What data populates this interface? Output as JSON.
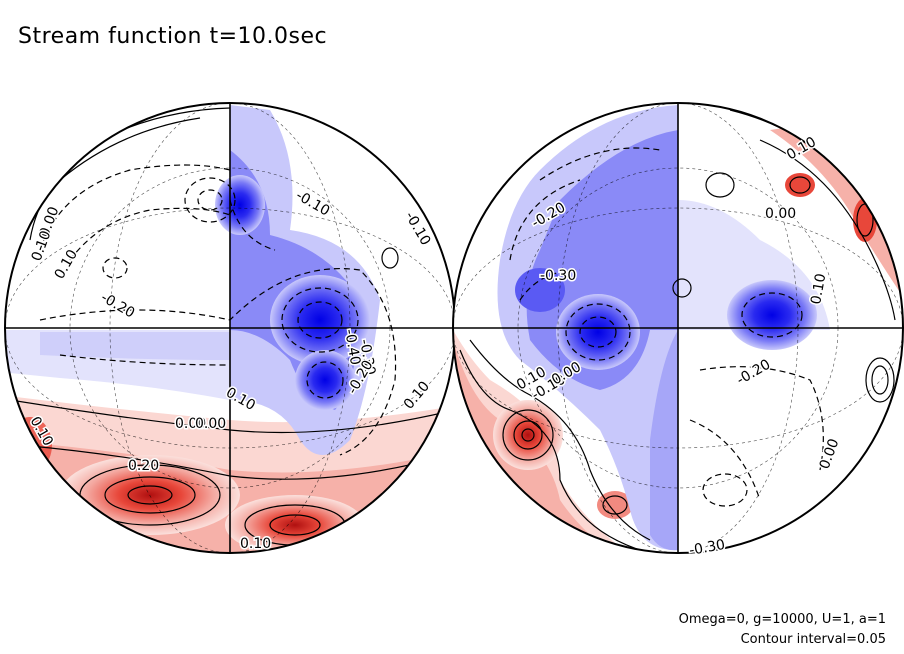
{
  "title": "Stream function t=10.0sec",
  "footer": {
    "params": "Omega=0, g=10000, U=1, a=1",
    "interval": "Contour interval=0.05"
  },
  "colors": {
    "positive": "#e8473a",
    "negative": "#1010ee",
    "background": "#ffffff"
  },
  "chart_data": {
    "type": "contour",
    "title": "Stream function t=10.0sec",
    "projection": "orthographic hemispheres",
    "contour_interval": 0.05,
    "colormap": "blue (negative) - white - red (positive)",
    "hemispheres": [
      {
        "name": "left",
        "contour_labels": [
          "0.00",
          "0.10",
          "0.10",
          "-0.10",
          "-0.20",
          "-0.10",
          "0.10",
          "0.00",
          "-0.40",
          "-0.30",
          "-0.20",
          "0.10",
          "0.10",
          "0.00",
          "0.20",
          "0.10"
        ],
        "maxima": [
          {
            "label": "0.20",
            "region": "lower-left"
          }
        ],
        "minima": [
          {
            "label": "-0.40",
            "region": "center-right"
          }
        ]
      },
      {
        "name": "right",
        "contour_labels": [
          "-0.20",
          "0.10",
          "0.00",
          "-0.30",
          "0.10",
          "-0.10",
          "0.10",
          "0.00",
          "-0.20",
          "0.00",
          "-0.30"
        ],
        "maxima": [
          {
            "label": "0.10",
            "region": "lower-left"
          }
        ],
        "minima": [
          {
            "label": "-0.30",
            "region": "left-center"
          }
        ]
      }
    ]
  }
}
